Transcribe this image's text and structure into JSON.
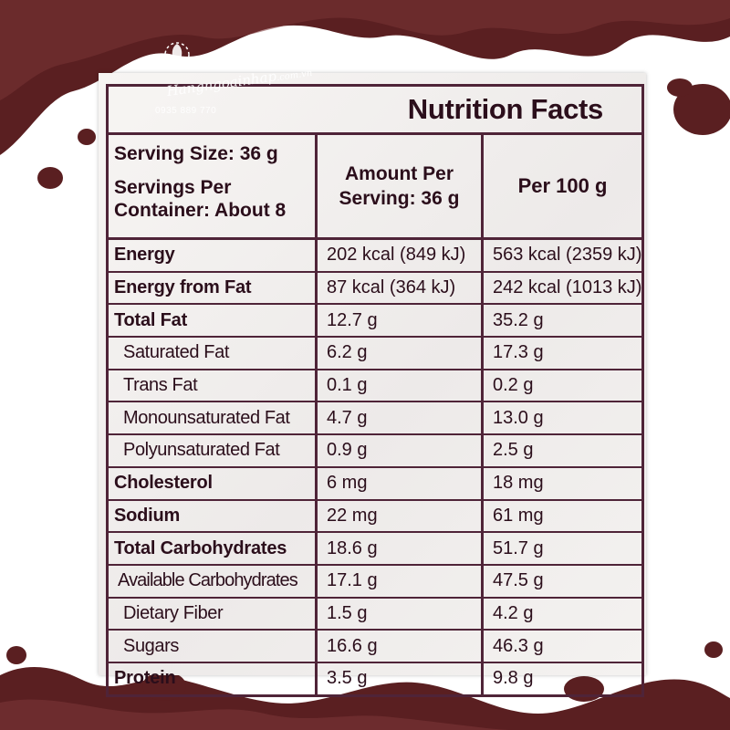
{
  "watermark": {
    "brand": "Hangngoainhap",
    "domain": ".com.vn",
    "phone": "0935 889 770"
  },
  "colors": {
    "chocolate": "#5a1f21",
    "ink": "#2b0e1b",
    "border": "#4f2438"
  },
  "label": {
    "title": "Nutrition Facts",
    "serving_size": "Serving Size: 36 g",
    "servings_per_container": "Servings Per Container: About 8",
    "col_per_serving": "Amount Per Serving: 36 g",
    "col_per_100g": "Per 100 g",
    "rows": [
      {
        "name": "Energy",
        "serving": "202 kcal (849 kJ)",
        "per100": "563 kcal (2359 kJ)"
      },
      {
        "name": "Energy from Fat",
        "serving": "87 kcal (364 kJ)",
        "per100": "242 kcal (1013 kJ)"
      },
      {
        "name": "Total Fat",
        "serving": "12.7 g",
        "per100": "35.2 g"
      },
      {
        "name": "Saturated Fat",
        "serving": "6.2 g",
        "per100": "17.3 g"
      },
      {
        "name": "Trans Fat",
        "serving": "0.1 g",
        "per100": "0.2 g"
      },
      {
        "name": "Monounsaturated Fat",
        "serving": "4.7 g",
        "per100": "13.0 g"
      },
      {
        "name": "Polyunsaturated Fat",
        "serving": "0.9 g",
        "per100": "2.5 g"
      },
      {
        "name": "Cholesterol",
        "serving": "6 mg",
        "per100": "18 mg"
      },
      {
        "name": "Sodium",
        "serving": "22 mg",
        "per100": "61 mg"
      },
      {
        "name": "Total Carbohydrates",
        "serving": "18.6 g",
        "per100": "51.7 g"
      },
      {
        "name": "Available Carbohydrates",
        "serving": "17.1 g",
        "per100": "47.5 g"
      },
      {
        "name": "Dietary Fiber",
        "serving": "1.5 g",
        "per100": "4.2 g"
      },
      {
        "name": "Sugars",
        "serving": "16.6 g",
        "per100": "46.3 g"
      },
      {
        "name": "Protein",
        "serving": "3.5 g",
        "per100": "9.8 g"
      }
    ]
  }
}
